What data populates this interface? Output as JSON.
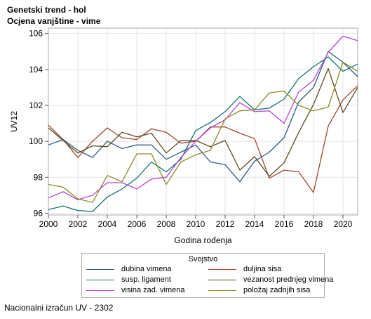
{
  "title": "Genetski trend - hol",
  "subtitle": "Ocjena vanjštine - vime",
  "footnote": "Nacionalni izračun UV - 2302",
  "chart_data": {
    "type": "line",
    "xlabel": "Godina rođenja",
    "ylabel": "UV12",
    "xlim": [
      2000,
      2021
    ],
    "ylim": [
      95.9,
      106.3
    ],
    "x_ticks": [
      2000,
      2002,
      2004,
      2006,
      2008,
      2010,
      2012,
      2014,
      2016,
      2018,
      2020
    ],
    "y_ticks": [
      96,
      98,
      100,
      102,
      104,
      106
    ],
    "grid": true,
    "legend": {
      "title": "Svojstvo",
      "placement": "bottom"
    },
    "x": [
      2000,
      2001,
      2002,
      2003,
      2004,
      2005,
      2006,
      2007,
      2008,
      2009,
      2010,
      2011,
      2012,
      2013,
      2014,
      2015,
      2016,
      2017,
      2018,
      2019,
      2020,
      2021
    ],
    "series": [
      {
        "name": "dubina vimena",
        "color": "#2e5a88",
        "values": [
          99.8,
          100.1,
          99.5,
          99.1,
          100.0,
          99.6,
          99.8,
          99.8,
          99.0,
          99.4,
          99.8,
          98.85,
          98.7,
          97.75,
          98.9,
          99.4,
          100.2,
          102.2,
          103.0,
          105.0,
          104.4,
          103.6
        ]
      },
      {
        "name": "duljina sisa",
        "color": "#a0432f",
        "values": [
          100.9,
          100.1,
          99.1,
          100.0,
          100.75,
          100.2,
          100.1,
          100.7,
          100.5,
          99.9,
          100.0,
          100.8,
          100.8,
          100.45,
          100.15,
          97.95,
          98.4,
          98.3,
          97.15,
          100.85,
          102.3,
          103.1
        ]
      },
      {
        "name": "susp. ligament",
        "color": "#127272",
        "values": [
          96.2,
          96.4,
          96.15,
          96.1,
          96.9,
          97.35,
          97.95,
          98.85,
          98.3,
          99.0,
          100.6,
          101.05,
          101.65,
          102.5,
          101.75,
          101.85,
          102.35,
          103.5,
          104.15,
          104.7,
          103.9,
          104.3
        ]
      },
      {
        "name": "vezanost prednjeg vimena",
        "color": "#5e4a1f",
        "values": [
          100.75,
          100.05,
          99.35,
          99.75,
          99.7,
          100.5,
          100.25,
          100.45,
          99.35,
          100.05,
          100.05,
          99.7,
          100.05,
          98.4,
          99.15,
          98.05,
          98.8,
          100.5,
          102.05,
          104.05,
          101.6,
          103.0
        ]
      },
      {
        "name": "visina zad. vimena",
        "color": "#b646d6",
        "values": [
          96.85,
          97.2,
          96.75,
          97.0,
          97.7,
          97.7,
          97.35,
          97.9,
          98.0,
          99.1,
          100.0,
          100.75,
          101.2,
          102.15,
          101.65,
          101.7,
          101.0,
          102.75,
          103.4,
          104.95,
          105.85,
          105.6
        ]
      },
      {
        "name": "položaj zadnjih sisa",
        "color": "#8a8a28",
        "values": [
          97.6,
          97.45,
          96.8,
          96.6,
          98.1,
          97.75,
          99.3,
          99.3,
          97.6,
          98.85,
          99.25,
          99.5,
          101.25,
          101.7,
          101.75,
          102.7,
          102.8,
          102.0,
          101.7,
          101.9,
          104.4,
          103.9
        ]
      }
    ]
  }
}
